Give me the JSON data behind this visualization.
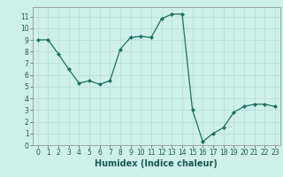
{
  "x": [
    0,
    1,
    2,
    3,
    4,
    5,
    6,
    7,
    8,
    9,
    10,
    11,
    12,
    13,
    14,
    15,
    16,
    17,
    18,
    19,
    20,
    21,
    22,
    23
  ],
  "y": [
    9.0,
    9.0,
    7.8,
    6.5,
    5.3,
    5.5,
    5.2,
    5.5,
    8.2,
    9.2,
    9.3,
    9.2,
    10.8,
    11.2,
    11.2,
    3.0,
    0.3,
    1.0,
    1.5,
    2.8,
    3.3,
    3.5,
    3.5,
    3.3
  ],
  "line_color": "#1a7060",
  "marker": "D",
  "marker_size": 2.0,
  "bg_color": "#cef0e8",
  "grid_color": "#b0d8ce",
  "xlabel": "Humidex (Indice chaleur)",
  "xlabel_fontsize": 7,
  "xlim": [
    -0.5,
    23.5
  ],
  "ylim": [
    0,
    11.8
  ],
  "yticks": [
    0,
    1,
    2,
    3,
    4,
    5,
    6,
    7,
    8,
    9,
    10,
    11
  ],
  "xtick_labels": [
    "0",
    "1",
    "2",
    "3",
    "4",
    "5",
    "6",
    "7",
    "8",
    "9",
    "10",
    "11",
    "12",
    "13",
    "14",
    "15",
    "16",
    "17",
    "18",
    "19",
    "20",
    "21",
    "22",
    "23"
  ],
  "tick_fontsize": 5.5,
  "xlabel_fontsize_bold": true
}
